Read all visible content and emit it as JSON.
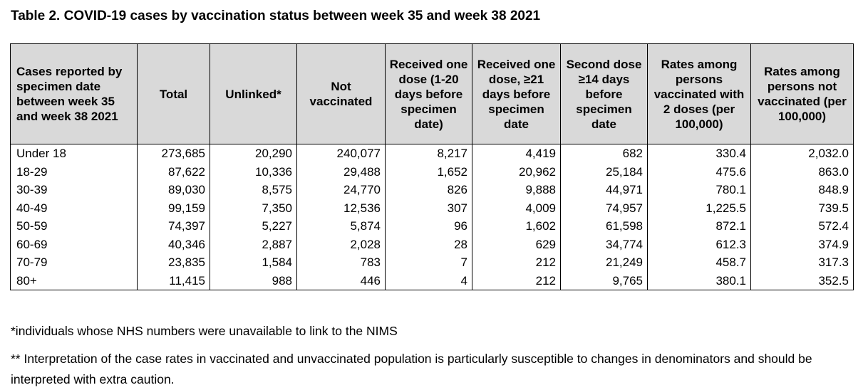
{
  "title": "Table 2. COVID-19 cases by vaccination status between week 35 and week 38 2021",
  "columns": [
    "Cases reported by specimen date between week 35 and week 38 2021",
    "Total",
    "Unlinked*",
    "Not vaccinated",
    "Received one dose (1-20 days before specimen date)",
    "Received one dose, ≥21 days before specimen date",
    "Second dose ≥14 days before specimen date",
    "Rates among persons vaccinated with 2 doses (per 100,000)",
    "Rates among persons not vaccinated (per 100,000)"
  ],
  "rows": [
    [
      "Under 18",
      "273,685",
      "20,290",
      "240,077",
      "8,217",
      "4,419",
      "682",
      "330.4",
      "2,032.0"
    ],
    [
      "18-29",
      "87,622",
      "10,336",
      "29,488",
      "1,652",
      "20,962",
      "25,184",
      "475.6",
      "863.0"
    ],
    [
      "30-39",
      "89,030",
      "8,575",
      "24,770",
      "826",
      "9,888",
      "44,971",
      "780.1",
      "848.9"
    ],
    [
      "40-49",
      "99,159",
      "7,350",
      "12,536",
      "307",
      "4,009",
      "74,957",
      "1,225.5",
      "739.5"
    ],
    [
      "50-59",
      "74,397",
      "5,227",
      "5,874",
      "96",
      "1,602",
      "61,598",
      "872.1",
      "572.4"
    ],
    [
      "60-69",
      "40,346",
      "2,887",
      "2,028",
      "28",
      "629",
      "34,774",
      "612.3",
      "374.9"
    ],
    [
      "70-79",
      "23,835",
      "1,584",
      "783",
      "7",
      "212",
      "21,249",
      "458.7",
      "317.3"
    ],
    [
      "80+",
      "11,415",
      "988",
      "446",
      "4",
      "212",
      "9,765",
      "380.1",
      "352.5"
    ]
  ],
  "footnotes": [
    "*individuals whose NHS numbers were unavailable to link to the NIMS",
    "** Interpretation of the case rates in vaccinated and unvaccinated population is particularly susceptible to changes in denominators and should be interpreted with extra caution."
  ],
  "colors": {
    "header_bg": "#d9d9d9",
    "border": "#000000"
  }
}
